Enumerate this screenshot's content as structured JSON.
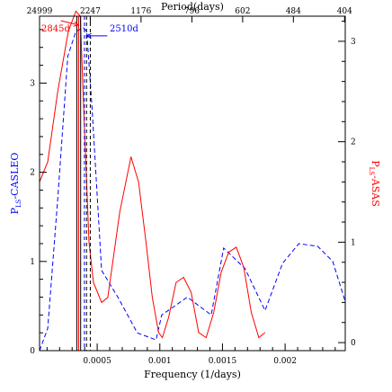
{
  "chart_data": {
    "type": "line",
    "xlabel": "Frequency (1/days)",
    "x2label": "Period(days)",
    "ylabel_left": {
      "main": "P",
      "sub": "LS",
      "rest": "-CASLEO"
    },
    "ylabel_right": {
      "main": "P",
      "sub": "LS",
      "rest": "-ASAS"
    },
    "xlim": [
      4e-05,
      0.00248
    ],
    "ylim_left": [
      0,
      3.75
    ],
    "ylim_right": [
      -0.08,
      3.25
    ],
    "x_ticks": [
      {
        "value": 0.0005,
        "label": "0.0005"
      },
      {
        "value": 0.001,
        "label": "0.001"
      },
      {
        "value": 0.0015,
        "label": "0.0015"
      },
      {
        "value": 0.002,
        "label": "0.002"
      }
    ],
    "top_ticks": [
      {
        "value": 4e-05,
        "label": "24999"
      },
      {
        "value": 0.000445,
        "label": "2247"
      },
      {
        "value": 0.00085,
        "label": "1176"
      },
      {
        "value": 0.001256,
        "label": "796"
      },
      {
        "value": 0.001661,
        "label": "602"
      },
      {
        "value": 0.002066,
        "label": "484"
      },
      {
        "value": 0.002475,
        "label": "404"
      }
    ],
    "y_left_ticks": [
      {
        "value": 0,
        "label": "0"
      },
      {
        "value": 1,
        "label": "1"
      },
      {
        "value": 2,
        "label": "2"
      },
      {
        "value": 3,
        "label": "3"
      }
    ],
    "y_right_ticks": [
      {
        "value": 0,
        "label": "0"
      },
      {
        "value": 1,
        "label": "1"
      },
      {
        "value": 2,
        "label": "2"
      },
      {
        "value": 3,
        "label": "3"
      }
    ],
    "series": [
      {
        "axis": "left",
        "color": "#0000ff",
        "style": "dashed",
        "x": [
          4e-05,
          0.000105,
          0.000185,
          0.000265,
          0.00033,
          0.00039,
          0.000417,
          0.00046,
          0.000535,
          0.000665,
          0.00082,
          0.00097,
          0.001015,
          0.00122,
          0.00141,
          0.00151,
          0.00168,
          0.00184,
          0.00198,
          0.00211,
          0.00226,
          0.00238,
          0.00248
        ],
        "y": [
          0.0,
          0.25,
          1.7,
          3.3,
          3.58,
          3.62,
          3.58,
          2.7,
          0.9,
          0.6,
          0.2,
          0.12,
          0.4,
          0.6,
          0.4,
          1.15,
          0.92,
          0.45,
          0.98,
          1.2,
          1.17,
          1.0,
          0.55
        ]
      },
      {
        "axis": "right",
        "color": "#ff0000",
        "style": "solid",
        "x": [
          4e-05,
          0.000105,
          0.000185,
          0.00027,
          0.00033,
          0.000365,
          0.00039,
          0.000435,
          0.00047,
          0.000535,
          0.000585,
          0.00068,
          0.00077,
          0.00083,
          0.00089,
          0.00094,
          0.00099,
          0.00102,
          0.00107,
          0.00113,
          0.00119,
          0.00125,
          0.00131,
          0.00137,
          0.00143,
          0.00149,
          0.00155,
          0.00161,
          0.00167,
          0.00173,
          0.00179,
          0.00184
        ],
        "y": [
          1.6,
          1.8,
          2.5,
          3.1,
          3.3,
          3.25,
          2.4,
          1.0,
          0.6,
          0.4,
          0.45,
          1.3,
          1.85,
          1.6,
          1.0,
          0.45,
          0.1,
          0.05,
          0.25,
          0.6,
          0.65,
          0.5,
          0.1,
          0.05,
          0.3,
          0.7,
          0.9,
          0.95,
          0.75,
          0.3,
          0.05,
          0.1
        ]
      }
    ],
    "vlines": [
      {
        "x": 0.000352,
        "color": "#ff0000",
        "style": "solid"
      },
      {
        "x": 0.000398,
        "color": "#0000ff",
        "style": "dashed"
      },
      {
        "x": 0.000338,
        "color": "#000000",
        "style": "solid"
      },
      {
        "x": 0.000368,
        "color": "#000000",
        "style": "solid"
      },
      {
        "x": 0.000415,
        "color": "#000000",
        "style": "dashed"
      },
      {
        "x": 0.000445,
        "color": "#000000",
        "style": "dashed"
      }
    ],
    "annotations": [
      {
        "text": "2845d",
        "color": "#ff0000",
        "x": 4e-05,
        "y_left": 3.58,
        "arrow_to": [
          0.000352,
          3.65
        ],
        "arrow_from": [
          0.00021,
          3.7
        ]
      },
      {
        "text": "2510d",
        "color": "#0000ff",
        "x": 0.0006,
        "y_left": 3.58,
        "arrow_to": [
          0.000415,
          3.53
        ],
        "arrow_from": [
          0.00058,
          3.53
        ]
      }
    ]
  }
}
